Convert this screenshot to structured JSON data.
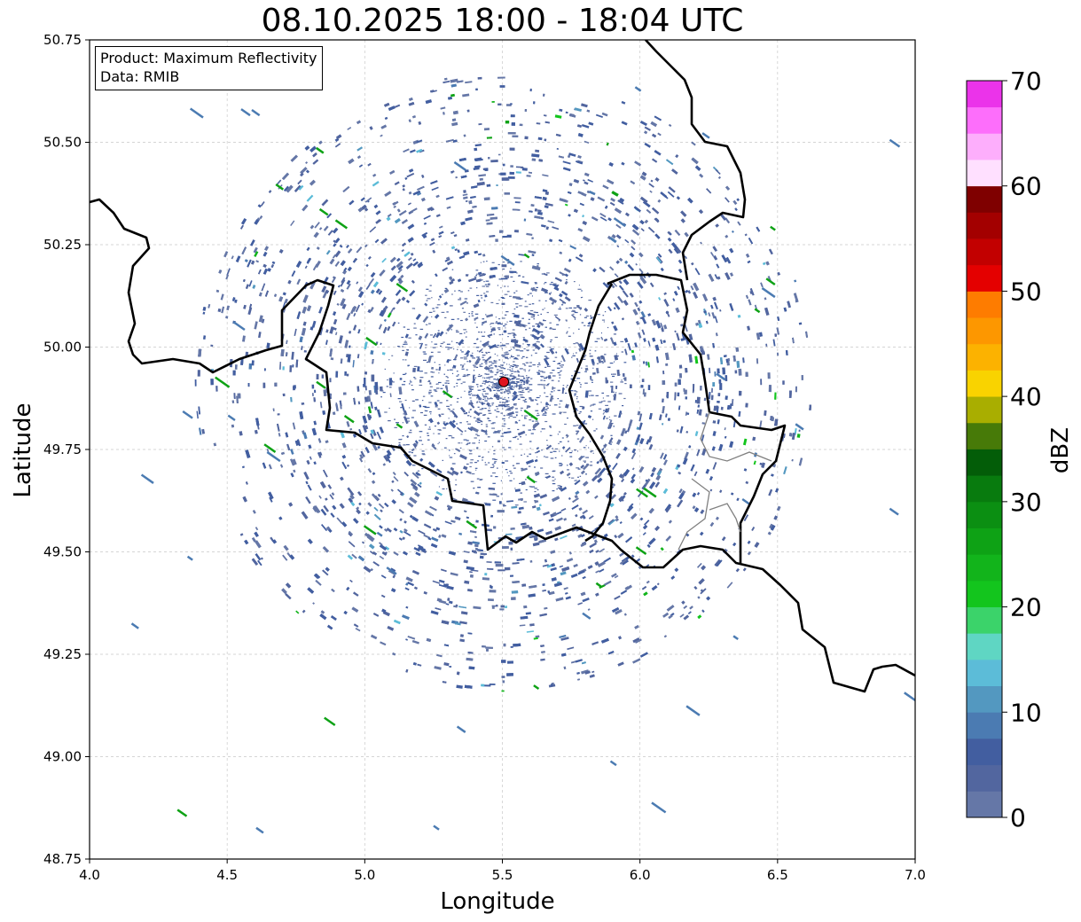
{
  "title": "08.10.2025 18:00 - 18:04 UTC",
  "info_box": {
    "product": "Product: Maximum Reflectivity",
    "data": "Data: RMIB"
  },
  "axes": {
    "xlabel": "Longitude",
    "ylabel": "Latitude",
    "xlim": [
      4.0,
      7.0
    ],
    "ylim": [
      48.75,
      50.75
    ],
    "xticks": [
      "4.0",
      "4.5",
      "5.0",
      "5.5",
      "6.0",
      "6.5",
      "7.0"
    ],
    "yticks": [
      "48.75",
      "49.00",
      "49.25",
      "49.50",
      "49.75",
      "50.00",
      "50.25",
      "50.50",
      "50.75"
    ],
    "grid": true
  },
  "radar_site": {
    "lon": 5.505,
    "lat": 49.915,
    "color": "#e0141e"
  },
  "colorbar": {
    "label": "dBZ",
    "range": [
      0,
      70
    ],
    "ticks": [
      "0",
      "10",
      "20",
      "30",
      "40",
      "50",
      "60",
      "70"
    ],
    "colors": [
      "#6577a7",
      "#52669f",
      "#425ea0",
      "#4b7bb2",
      "#5398c0",
      "#5cbcd8",
      "#5fd6c3",
      "#3bd36a",
      "#13c51d",
      "#12b41b",
      "#0ea215",
      "#0b8f12",
      "#087b0e",
      "#035d08",
      "#477a08",
      "#a9ae00",
      "#f9d300",
      "#fcb200",
      "#fd9700",
      "#fe7c00",
      "#e40000",
      "#c20000",
      "#a30000",
      "#7f0000",
      "#ffe0ff",
      "#fdaefc",
      "#fd6efb",
      "#eb33ea"
    ]
  },
  "colors": {
    "border_country": "#000000",
    "border_region": "#808080",
    "grid": "#c8c8c8",
    "echo_base": "#5a74ad"
  }
}
